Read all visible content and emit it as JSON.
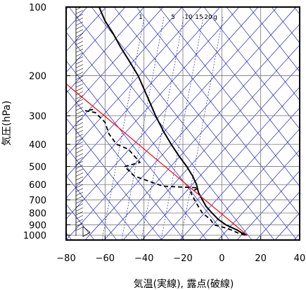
{
  "chart_data": {
    "type": "line",
    "title": "",
    "xlabel": "気温(実線), 露点(破線)",
    "ylabel": "気圧(hPa)",
    "xlim": [
      -80,
      40
    ],
    "ylim": [
      1050,
      100
    ],
    "y_scale": "log",
    "x_ticks": [
      -80,
      -60,
      -40,
      -20,
      0,
      20,
      40
    ],
    "y_ticks": [
      100,
      200,
      300,
      400,
      500,
      600,
      700,
      800,
      900,
      1000
    ],
    "mixing_ratio_labels": [
      "1",
      "5",
      "10",
      "15",
      "20",
      "g"
    ],
    "colors": {
      "temperature": "#000000",
      "dewpoint": "#000000",
      "parcel": "#ff0000",
      "guides": "#0000cc",
      "frame": "#000000"
    },
    "grid": true,
    "series": [
      {
        "style": "solid",
        "x": [
          13,
          10,
          8,
          5,
          2,
          -2,
          -5,
          -8,
          -10,
          -12,
          -13,
          -15,
          -18,
          -22,
          -26,
          -30,
          -34,
          -38,
          -43,
          -48,
          -52,
          -56,
          -60,
          -62,
          -63
        ],
        "y": [
          1000,
          975,
          950,
          925,
          900,
          850,
          800,
          750,
          700,
          650,
          600,
          550,
          500,
          450,
          400,
          350,
          300,
          250,
          200,
          170,
          150,
          130,
          115,
          105,
          100
        ]
      },
      {
        "style": "dashed",
        "x": [
          12,
          8,
          5,
          2,
          -4,
          -6,
          -10,
          -12,
          -14,
          -16,
          -12,
          -30,
          -35,
          -45,
          -50,
          -42,
          -48,
          -54,
          -58,
          -60,
          -65,
          -70,
          -65
        ],
        "y": [
          1000,
          975,
          950,
          930,
          900,
          850,
          800,
          750,
          700,
          650,
          620,
          610,
          590,
          550,
          500,
          480,
          420,
          400,
          360,
          320,
          290,
          285,
          280
        ]
      },
      {
        "style": "parcel",
        "x": [
          13,
          -85
        ],
        "y": [
          1000,
          200
        ]
      }
    ]
  }
}
